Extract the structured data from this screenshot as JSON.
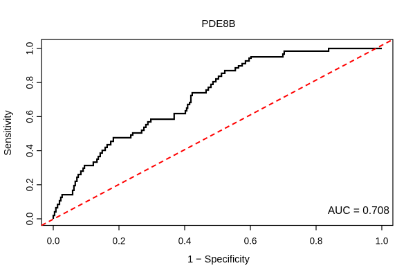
{
  "chart": {
    "title": "PDE8B",
    "xlabel": "1 − Specificity",
    "ylabel": "Sensitivity",
    "auc_text": "AUC = 0.708"
  },
  "colors": {
    "roc_curve": "#000000",
    "diagonal": "#FF0000",
    "box": "#000000",
    "text": "#000000",
    "background": "#FFFFFF"
  },
  "chart_data": {
    "type": "line",
    "subtype": "roc-step-curve",
    "title": "PDE8B",
    "xlabel": "1 − Specificity",
    "ylabel": "Sensitivity",
    "xlim": [
      0,
      1
    ],
    "ylim": [
      0,
      1
    ],
    "grid": false,
    "legend_position": "none",
    "x_ticks": [
      0.0,
      0.2,
      0.4,
      0.6,
      0.8,
      1.0
    ],
    "x_tick_labels": [
      "0.0",
      "0.2",
      "0.4",
      "0.6",
      "0.8",
      "1.0"
    ],
    "y_ticks": [
      0.0,
      0.2,
      0.4,
      0.6,
      0.8,
      1.0
    ],
    "y_tick_labels": [
      "0.0",
      "0.2",
      "0.4",
      "0.6",
      "0.8",
      "1.0"
    ],
    "annotations": [
      {
        "text": "AUC = 0.708",
        "position": "bottom-right"
      }
    ],
    "auc": 0.708,
    "series": [
      {
        "name": "ROC curve",
        "color": "#000000",
        "line_style": "solid",
        "line_width": 2,
        "points": [
          [
            0.0,
            0.0
          ],
          [
            0.0,
            0.02
          ],
          [
            0.004,
            0.02
          ],
          [
            0.004,
            0.041
          ],
          [
            0.008,
            0.041
          ],
          [
            0.008,
            0.065
          ],
          [
            0.013,
            0.065
          ],
          [
            0.013,
            0.085
          ],
          [
            0.019,
            0.085
          ],
          [
            0.019,
            0.106
          ],
          [
            0.023,
            0.106
          ],
          [
            0.023,
            0.126
          ],
          [
            0.027,
            0.126
          ],
          [
            0.027,
            0.142
          ],
          [
            0.059,
            0.142
          ],
          [
            0.059,
            0.167
          ],
          [
            0.063,
            0.167
          ],
          [
            0.063,
            0.195
          ],
          [
            0.067,
            0.195
          ],
          [
            0.067,
            0.22
          ],
          [
            0.072,
            0.22
          ],
          [
            0.072,
            0.244
          ],
          [
            0.076,
            0.244
          ],
          [
            0.076,
            0.26
          ],
          [
            0.084,
            0.26
          ],
          [
            0.084,
            0.28
          ],
          [
            0.091,
            0.28
          ],
          [
            0.091,
            0.297
          ],
          [
            0.095,
            0.297
          ],
          [
            0.095,
            0.313
          ],
          [
            0.122,
            0.313
          ],
          [
            0.122,
            0.333
          ],
          [
            0.133,
            0.333
          ],
          [
            0.133,
            0.35
          ],
          [
            0.137,
            0.35
          ],
          [
            0.137,
            0.366
          ],
          [
            0.143,
            0.366
          ],
          [
            0.143,
            0.386
          ],
          [
            0.149,
            0.386
          ],
          [
            0.149,
            0.402
          ],
          [
            0.158,
            0.402
          ],
          [
            0.158,
            0.419
          ],
          [
            0.164,
            0.419
          ],
          [
            0.164,
            0.435
          ],
          [
            0.175,
            0.435
          ],
          [
            0.175,
            0.455
          ],
          [
            0.183,
            0.455
          ],
          [
            0.183,
            0.476
          ],
          [
            0.236,
            0.476
          ],
          [
            0.236,
            0.492
          ],
          [
            0.242,
            0.492
          ],
          [
            0.242,
            0.504
          ],
          [
            0.269,
            0.504
          ],
          [
            0.269,
            0.52
          ],
          [
            0.276,
            0.52
          ],
          [
            0.276,
            0.537
          ],
          [
            0.282,
            0.537
          ],
          [
            0.282,
            0.553
          ],
          [
            0.288,
            0.553
          ],
          [
            0.288,
            0.569
          ],
          [
            0.297,
            0.569
          ],
          [
            0.297,
            0.585
          ],
          [
            0.368,
            0.585
          ],
          [
            0.368,
            0.618
          ],
          [
            0.402,
            0.618
          ],
          [
            0.402,
            0.634
          ],
          [
            0.406,
            0.634
          ],
          [
            0.406,
            0.65
          ],
          [
            0.409,
            0.65
          ],
          [
            0.409,
            0.671
          ],
          [
            0.415,
            0.671
          ],
          [
            0.415,
            0.683
          ],
          [
            0.419,
            0.683
          ],
          [
            0.419,
            0.724
          ],
          [
            0.423,
            0.724
          ],
          [
            0.423,
            0.74
          ],
          [
            0.465,
            0.74
          ],
          [
            0.465,
            0.756
          ],
          [
            0.472,
            0.756
          ],
          [
            0.472,
            0.772
          ],
          [
            0.48,
            0.772
          ],
          [
            0.48,
            0.789
          ],
          [
            0.486,
            0.789
          ],
          [
            0.486,
            0.805
          ],
          [
            0.495,
            0.805
          ],
          [
            0.495,
            0.821
          ],
          [
            0.503,
            0.821
          ],
          [
            0.503,
            0.837
          ],
          [
            0.512,
            0.837
          ],
          [
            0.512,
            0.854
          ],
          [
            0.522,
            0.854
          ],
          [
            0.522,
            0.87
          ],
          [
            0.554,
            0.87
          ],
          [
            0.554,
            0.886
          ],
          [
            0.564,
            0.886
          ],
          [
            0.564,
            0.898
          ],
          [
            0.575,
            0.898
          ],
          [
            0.575,
            0.911
          ],
          [
            0.585,
            0.911
          ],
          [
            0.585,
            0.927
          ],
          [
            0.596,
            0.927
          ],
          [
            0.596,
            0.943
          ],
          [
            0.602,
            0.943
          ],
          [
            0.602,
            0.951
          ],
          [
            0.699,
            0.951
          ],
          [
            0.699,
            0.967
          ],
          [
            0.703,
            0.967
          ],
          [
            0.703,
            0.984
          ],
          [
            0.838,
            0.984
          ],
          [
            0.838,
            1.0
          ],
          [
            1.0,
            1.0
          ]
        ]
      },
      {
        "name": "chance diagonal",
        "color": "#FF0000",
        "line_style": "dashed",
        "line_width": 2,
        "points": [
          [
            0,
            0
          ],
          [
            1,
            1
          ]
        ]
      }
    ]
  }
}
